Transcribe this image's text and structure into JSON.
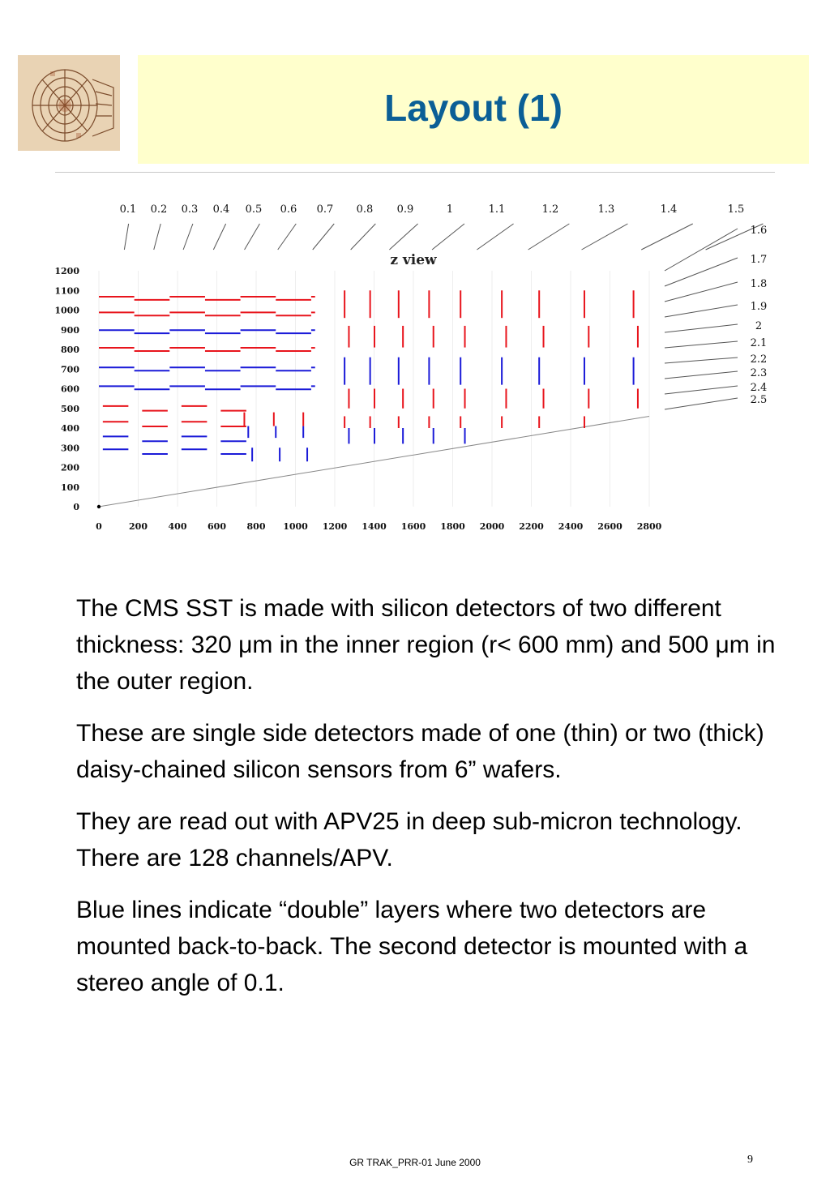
{
  "header": {
    "title": "Layout (1)"
  },
  "logo": {
    "icon": "cms-detector-sketch-icon"
  },
  "figure": {
    "view_title": "z view",
    "eta_labels": [
      "0.1",
      "0.2",
      "0.3",
      "0.4",
      "0.5",
      "0.6",
      "0.7",
      "0.8",
      "0.9",
      "1",
      "1.1",
      "1.2",
      "1.3",
      "1.4",
      "1.5",
      "1.6",
      "1.7",
      "1.8",
      "1.9",
      "2",
      "2.1",
      "2.2",
      "2.3",
      "2.4",
      "2.5"
    ],
    "y_ticks": [
      "1200",
      "1100",
      "1000",
      "900",
      "800",
      "700",
      "600",
      "500",
      "400",
      "300",
      "200",
      "100",
      "0"
    ],
    "x_ticks": [
      "0",
      "200",
      "400",
      "600",
      "800",
      "1000",
      "1200",
      "1400",
      "1600",
      "1800",
      "2000",
      "2200",
      "2400",
      "2600",
      "2800"
    ],
    "colors": {
      "single_layer": "#e8141c",
      "double_layer": "#1a1ad8",
      "beam_line": "#888888"
    }
  },
  "body": {
    "p1": "The CMS SST is made with silicon detectors of two different thickness: 320 μm in the inner region (r< 600 mm) and 500 μm in the outer region.",
    "p2": "These are single side detectors made of one (thin) or two (thick) daisy-chained silicon sensors from 6” wafers.",
    "p3": "They are read out with APV25 in deep sub-micron technology. There are 128 channels/APV.",
    "p4": "Blue lines indicate “double” layers where two detectors are mounted back-to-back. The second detector is mounted with a stereo angle of 0.1."
  },
  "footer": {
    "text": "GR TRAK_PRR-01  June 2000",
    "page": "9"
  }
}
